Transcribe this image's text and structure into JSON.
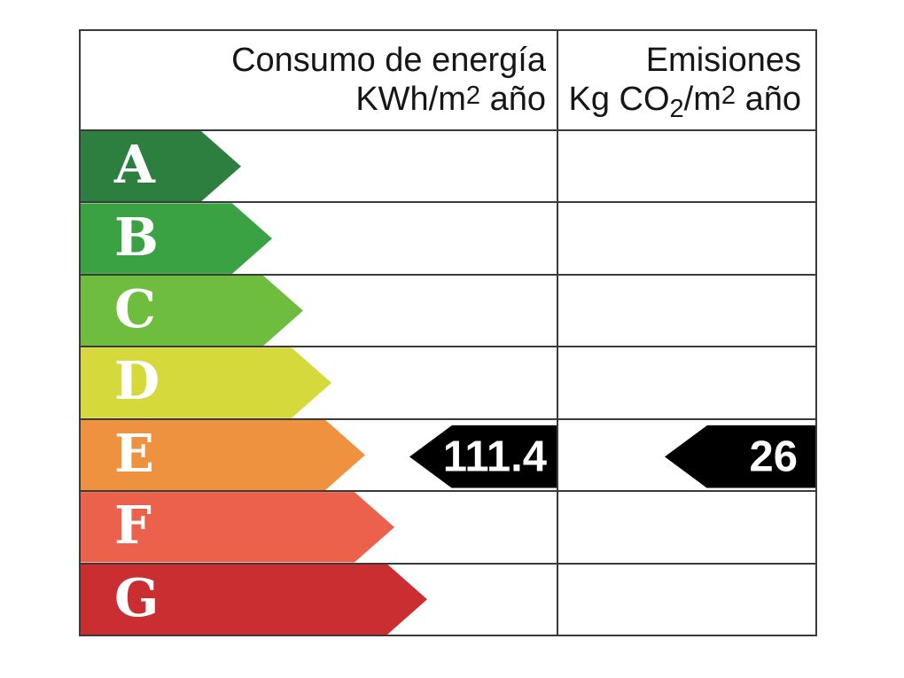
{
  "chart_data": {
    "type": "bar",
    "chart_kind": "energy-efficiency-label",
    "categories": [
      "A",
      "B",
      "C",
      "D",
      "E",
      "F",
      "G"
    ],
    "bar_colors": [
      "#2d7f3f",
      "#3aa243",
      "#6ebd3f",
      "#d5d93b",
      "#ef9240",
      "#eb614b",
      "#cb2e31"
    ],
    "bar_pixel_lengths": [
      181,
      216,
      251,
      283,
      321,
      354,
      391
    ],
    "columns": [
      {
        "header": "Consumo de energía KWh/m2 año",
        "indicator_value": 111.4,
        "indicator_row": "E"
      },
      {
        "header": "Emisiones Kg CO2/m2 año",
        "indicator_value": 26,
        "indicator_row": "E"
      }
    ],
    "grid": true,
    "legend_position": "none"
  },
  "header": {
    "consumption": {
      "line1": "Consumo de energía",
      "unit_pre": "KWh/m",
      "unit_sup": "2",
      "unit_post": " año"
    },
    "emissions": {
      "line1": "Emisiones",
      "unit_pre": "Kg CO",
      "unit_sub": "2",
      "unit_mid": "/m",
      "unit_sup": "2",
      "unit_post": " año"
    }
  },
  "ratings": [
    {
      "label": "A",
      "color": "#2d7f3f"
    },
    {
      "label": "B",
      "color": "#3aa243"
    },
    {
      "label": "C",
      "color": "#6ebd3f"
    },
    {
      "label": "D",
      "color": "#d5d93b"
    },
    {
      "label": "E",
      "color": "#ef9240"
    },
    {
      "label": "F",
      "color": "#eb614b"
    },
    {
      "label": "G",
      "color": "#cb2e31"
    }
  ],
  "indicators": {
    "consumption": {
      "value": "111.4",
      "row": "E"
    },
    "emissions": {
      "value": "26",
      "row": "E"
    }
  },
  "colors": {
    "grid": "#3a3a3a",
    "indicator_background": "#000000",
    "indicator_text": "#ffffff",
    "bar_letter_text": "#ffffff",
    "background": "#ffffff"
  }
}
